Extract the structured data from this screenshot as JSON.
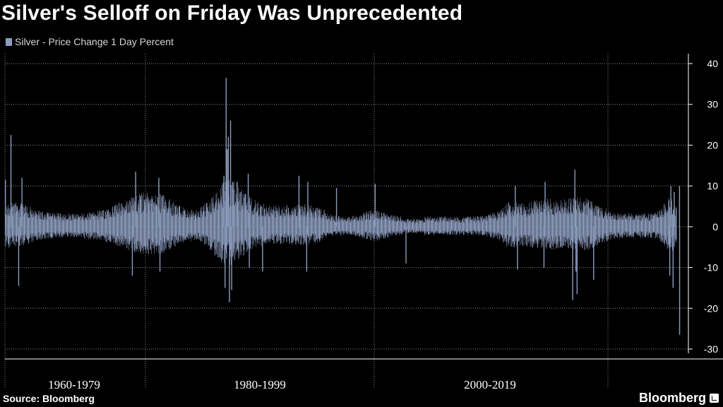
{
  "title": "Silver's Selloff on Friday Was Unprecedented",
  "legend": {
    "label": "Silver - Price Change 1 Day Percent"
  },
  "source": "Source: Bloomberg",
  "brand": "Bloomberg",
  "colors": {
    "series": "#8c9cbd",
    "background": "#000000",
    "grid": "#8a8a8a",
    "text": "#ffffff"
  },
  "chart_data": {
    "type": "bar",
    "title": "Silver's Selloff on Friday Was Unprecedented",
    "series": [
      {
        "name": "Silver - Price Change 1 Day Percent"
      }
    ],
    "x_categories": [
      "1960-1979",
      "1980-1999",
      "2000-2019"
    ],
    "x_range_years": [
      1960,
      2021.1
    ],
    "ylim": [
      -30,
      40
    ],
    "yticks": [
      -30,
      -20,
      -10,
      0,
      10,
      20,
      30,
      40
    ],
    "grid": "horizontal dotted",
    "y_axis_side": "right",
    "legend_position": "top-left",
    "notable_values": [
      {
        "year": 1960.0,
        "value": 11.5
      },
      {
        "year": 1960.5,
        "value": 22.5
      },
      {
        "year": 1961.2,
        "value": -14.5
      },
      {
        "year": 1961.5,
        "value": 12.0
      },
      {
        "year": 1971.5,
        "value": -12.0
      },
      {
        "year": 1971.8,
        "value": 13.5
      },
      {
        "year": 1973.9,
        "value": 12.0
      },
      {
        "year": 1974.0,
        "value": -11.0
      },
      {
        "year": 1979.8,
        "value": 12.5
      },
      {
        "year": 1979.9,
        "value": -15.0
      },
      {
        "year": 1980.0,
        "value": 36.5
      },
      {
        "year": 1980.1,
        "value": 19.0
      },
      {
        "year": 1980.2,
        "value": 22.0
      },
      {
        "year": 1980.3,
        "value": -18.5
      },
      {
        "year": 1980.4,
        "value": 26.0
      },
      {
        "year": 1980.5,
        "value": -15.5
      },
      {
        "year": 1980.6,
        "value": 11.0
      },
      {
        "year": 1981.0,
        "value": 11.0
      },
      {
        "year": 1982.0,
        "value": 13.0
      },
      {
        "year": 1982.1,
        "value": -10.0
      },
      {
        "year": 1983.3,
        "value": -11.0
      },
      {
        "year": 1986.6,
        "value": 12.5
      },
      {
        "year": 1987.3,
        "value": -11.0
      },
      {
        "year": 1987.4,
        "value": 11.0
      },
      {
        "year": 1990.0,
        "value": 9.5
      },
      {
        "year": 1993.5,
        "value": 10.5
      },
      {
        "year": 1996.3,
        "value": -9.0
      },
      {
        "year": 2006.2,
        "value": 10.0
      },
      {
        "year": 2006.4,
        "value": -10.5
      },
      {
        "year": 2008.8,
        "value": -10.0
      },
      {
        "year": 2008.9,
        "value": 11.0
      },
      {
        "year": 2011.4,
        "value": -18.0
      },
      {
        "year": 2011.6,
        "value": 14.0
      },
      {
        "year": 2011.7,
        "value": -11.0
      },
      {
        "year": 2011.8,
        "value": -16.5
      },
      {
        "year": 2013.3,
        "value": -13.0
      },
      {
        "year": 2020.2,
        "value": -12.0
      },
      {
        "year": 2020.3,
        "value": 10.0
      },
      {
        "year": 2020.5,
        "value": -15.0
      },
      {
        "year": 2020.6,
        "value": 8.5
      },
      {
        "year": 2021.09,
        "value": -26.5
      },
      {
        "year": 2021.08,
        "value": 10.0
      }
    ]
  }
}
